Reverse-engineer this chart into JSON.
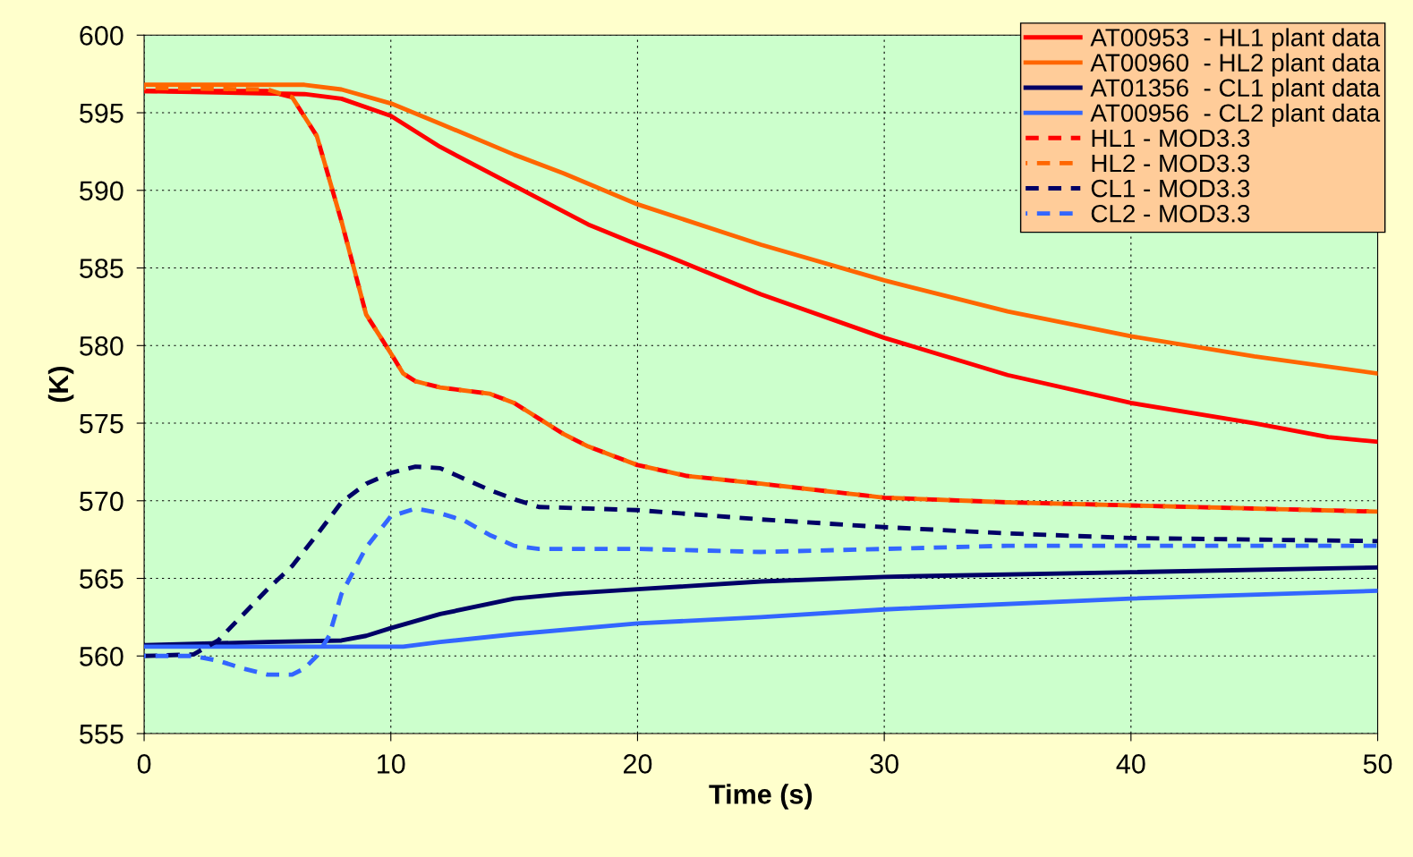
{
  "chart_data": {
    "type": "line",
    "xlabel": "Time (s)",
    "ylabel": "(K)",
    "xlim": [
      0,
      50
    ],
    "xticks": [
      0,
      10,
      20,
      30,
      40,
      50
    ],
    "ylim": [
      555,
      600
    ],
    "yticks": [
      555,
      560,
      565,
      570,
      575,
      580,
      585,
      590,
      595,
      600
    ],
    "grid": true,
    "legend": "top right",
    "marker": "none",
    "series": [
      {
        "name": "AT00953  - HL1 plant data",
        "color": "#ff0000",
        "line_style": "solid",
        "x": [
          0,
          6.5,
          8,
          10,
          12,
          15,
          18,
          20,
          21,
          25,
          30,
          35,
          40,
          45,
          48,
          50
        ],
        "values": [
          596.4,
          596.2,
          595.9,
          594.8,
          592.8,
          590.3,
          587.8,
          586.5,
          585.9,
          583.3,
          580.5,
          578.1,
          576.3,
          575,
          574.1,
          573.8
        ]
      },
      {
        "name": "AT00960  - HL2 plant data",
        "color": "#ff6600",
        "line_style": "solid",
        "x": [
          0,
          6.5,
          8,
          10,
          12,
          15,
          17,
          20,
          25,
          30,
          35,
          40,
          45,
          50
        ],
        "values": [
          596.8,
          596.8,
          596.5,
          595.6,
          594.3,
          592.3,
          591.1,
          589.1,
          586.5,
          584.2,
          582.2,
          580.6,
          579.3,
          578.2
        ]
      },
      {
        "name": "AT01356  - CL1 plant data",
        "color": "#000066",
        "line_style": "solid",
        "x": [
          0,
          5,
          8,
          9,
          10,
          12,
          15,
          17,
          20,
          25,
          30,
          40,
          50
        ],
        "values": [
          560.7,
          560.9,
          561,
          561.3,
          561.8,
          562.7,
          563.7,
          564,
          564.3,
          564.8,
          565.1,
          565.4,
          565.7
        ]
      },
      {
        "name": "AT00956  - CL2 plant data",
        "color": "#3366ff",
        "line_style": "solid",
        "x": [
          0,
          10.5,
          12,
          15,
          20,
          25,
          30,
          40,
          50
        ],
        "values": [
          560.6,
          560.6,
          560.9,
          561.4,
          562.1,
          562.5,
          563,
          563.7,
          564.2
        ]
      },
      {
        "name": "HL1 - MOD3.3",
        "color": "#ff0000",
        "line_style": "dashed",
        "x": [
          0,
          5,
          6,
          7,
          8,
          9,
          10,
          10.5,
          11,
          12,
          14,
          15,
          16,
          17,
          18,
          20,
          22,
          25,
          30,
          35,
          40,
          45,
          50
        ],
        "values": [
          596.4,
          596.4,
          596,
          593.5,
          588,
          582,
          579.5,
          578.2,
          577.7,
          577.3,
          576.9,
          576.3,
          575.3,
          574.3,
          573.5,
          572.3,
          571.6,
          571.1,
          570.2,
          569.9,
          569.7,
          569.5,
          569.3
        ]
      },
      {
        "name": "HL2 - MOD3.3",
        "color": "#ff6600",
        "line_style": "dashed",
        "x": [
          0,
          5,
          6,
          7,
          8,
          9,
          10,
          10.5,
          11,
          12,
          14,
          15,
          16,
          17,
          18,
          20,
          22,
          25,
          30,
          35,
          40,
          45,
          50
        ],
        "values": [
          596.6,
          596.5,
          596,
          593.5,
          588,
          582,
          579.5,
          578.2,
          577.7,
          577.3,
          576.9,
          576.3,
          575.3,
          574.3,
          573.5,
          572.3,
          571.6,
          571.1,
          570.2,
          569.9,
          569.7,
          569.5,
          569.3
        ]
      },
      {
        "name": "CL1 - MOD3.3",
        "color": "#000066",
        "line_style": "dashed",
        "x": [
          0,
          2,
          3,
          5,
          6,
          7,
          8,
          9,
          10,
          11,
          12,
          13,
          14,
          15,
          16,
          20,
          25,
          30,
          35,
          40,
          45,
          50
        ],
        "values": [
          560,
          560.1,
          561,
          564.3,
          565.8,
          567.8,
          569.9,
          571.1,
          571.8,
          572.2,
          572.1,
          571.4,
          570.7,
          570.1,
          569.6,
          569.4,
          568.8,
          568.3,
          567.9,
          567.6,
          567.5,
          567.4
        ]
      },
      {
        "name": "CL2 - MOD3.3",
        "color": "#3366ff",
        "line_style": "dashed",
        "x": [
          0,
          2,
          3,
          4,
          5,
          6,
          6.5,
          7,
          7.5,
          8,
          9,
          10,
          11,
          12,
          13,
          14,
          15,
          16,
          20,
          25,
          30,
          35,
          40,
          50
        ],
        "values": [
          560,
          560,
          559.7,
          559.2,
          558.8,
          558.8,
          559.2,
          560,
          561.3,
          564,
          567,
          569,
          569.5,
          569.2,
          568.7,
          567.8,
          567.1,
          566.9,
          566.9,
          566.7,
          566.9,
          567.1,
          567.1,
          567.1
        ]
      }
    ]
  }
}
